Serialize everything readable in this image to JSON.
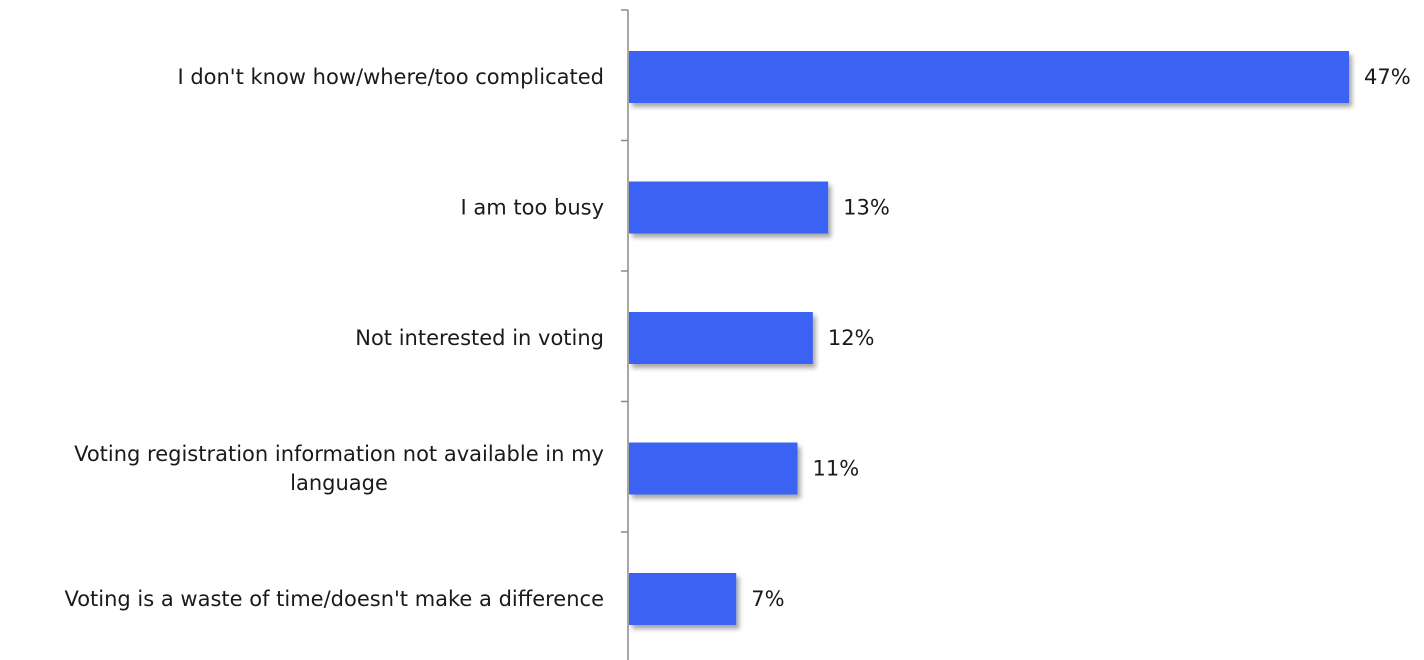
{
  "chart_data": {
    "type": "bar",
    "orientation": "horizontal",
    "categories": [
      "I don't know how/where/too complicated",
      "I am too busy",
      "Not interested in voting",
      "Voting registration information not available in my language",
      "Voting is a waste of time/doesn't make a difference"
    ],
    "category_lines": [
      [
        "I don't know how/where/too complicated"
      ],
      [
        "I am too busy"
      ],
      [
        "Not interested in voting"
      ],
      [
        "Voting registration information not available in my",
        "language"
      ],
      [
        "Voting is a waste of time/doesn't make a difference"
      ]
    ],
    "values": [
      47,
      13,
      12,
      11,
      7
    ],
    "value_labels": [
      "47%",
      "13%",
      "12%",
      "11%",
      "7%"
    ],
    "unit": "%",
    "bar_color": "#3a62f2",
    "xlim": [
      0,
      47
    ],
    "grid": false,
    "legend": "none",
    "title": "",
    "xlabel": "",
    "ylabel": ""
  }
}
